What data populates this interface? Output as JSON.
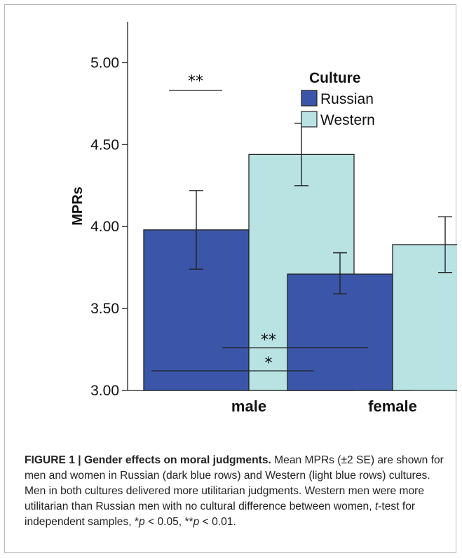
{
  "chart_data": {
    "type": "bar",
    "ylabel": "MPRs",
    "ylim": [
      3.0,
      5.25
    ],
    "yticks": [
      "5.00",
      "4.50",
      "4.00",
      "3.50",
      "3.00"
    ],
    "ytick_values": [
      5.0,
      4.5,
      4.0,
      3.5,
      3.0
    ],
    "categories": [
      "male",
      "female"
    ],
    "legend_title": "Culture",
    "legend_position": "top-right",
    "series": [
      {
        "name": "Russian",
        "color": "#3b55a8",
        "values": [
          3.98,
          3.71
        ],
        "err_low": [
          3.74,
          3.59
        ],
        "err_high": [
          4.22,
          3.84
        ]
      },
      {
        "name": "Western",
        "color": "#b9e2e3",
        "values": [
          4.44,
          3.89
        ],
        "err_low": [
          4.25,
          3.72
        ],
        "err_high": [
          4.63,
          4.06
        ]
      }
    ],
    "annotations": [
      {
        "text": "**",
        "between": "male Russian vs male Western"
      },
      {
        "text": "**",
        "between": "male Western vs female Western"
      },
      {
        "text": "*",
        "between": "male Russian vs female Russian"
      }
    ]
  },
  "caption": {
    "label": "FIGURE 1 | Gender effects on moral judgments.",
    "part1": " Mean MPRs (±2 SE) are shown for men and women in Russian (dark blue rows) and Western (light blue rows) cultures. Men in both cultures delivered more utilitarian judgments. Western men were more utilitarian than Russian men with no cultural difference between women, ",
    "t_italic": "t",
    "part2": "-test for independent samples, *",
    "p1_italic": "p",
    "part3": " < 0.05, **",
    "p2_italic": "p",
    "part4": " < 0.01."
  }
}
